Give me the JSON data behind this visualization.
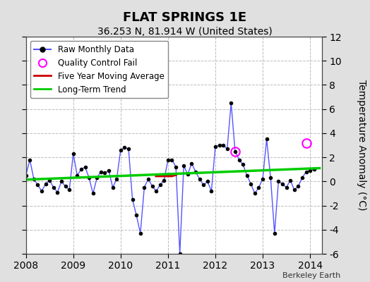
{
  "title": "FLAT SPRINGS 1E",
  "subtitle": "36.253 N, 81.914 W (United States)",
  "credit": "Berkeley Earth",
  "ylabel": "Temperature Anomaly (°C)",
  "xlim": [
    2008.0,
    2014.25
  ],
  "ylim": [
    -6,
    12
  ],
  "yticks": [
    -6,
    -4,
    -2,
    0,
    2,
    4,
    6,
    8,
    10,
    12
  ],
  "xticks": [
    2008,
    2009,
    2010,
    2011,
    2012,
    2013,
    2014
  ],
  "background_color": "#e0e0e0",
  "plot_bg_color": "#ffffff",
  "raw_color": "#5555ff",
  "raw_marker_color": "#000000",
  "qc_fail_color": "#ff00ff",
  "moving_avg_color": "#cc0000",
  "trend_color": "#00cc00",
  "raw_monthly": [
    [
      2008.0,
      0.5
    ],
    [
      2008.083,
      1.8
    ],
    [
      2008.167,
      0.2
    ],
    [
      2008.25,
      -0.3
    ],
    [
      2008.333,
      -0.8
    ],
    [
      2008.417,
      -0.2
    ],
    [
      2008.5,
      0.1
    ],
    [
      2008.583,
      -0.5
    ],
    [
      2008.667,
      -0.9
    ],
    [
      2008.75,
      0.0
    ],
    [
      2008.833,
      -0.4
    ],
    [
      2008.917,
      -0.7
    ],
    [
      2009.0,
      2.3
    ],
    [
      2009.083,
      0.5
    ],
    [
      2009.167,
      1.0
    ],
    [
      2009.25,
      1.2
    ],
    [
      2009.333,
      0.3
    ],
    [
      2009.417,
      -1.0
    ],
    [
      2009.5,
      0.3
    ],
    [
      2009.583,
      0.8
    ],
    [
      2009.667,
      0.7
    ],
    [
      2009.75,
      0.9
    ],
    [
      2009.833,
      -0.5
    ],
    [
      2009.917,
      0.2
    ],
    [
      2010.0,
      2.6
    ],
    [
      2010.083,
      2.8
    ],
    [
      2010.167,
      2.7
    ],
    [
      2010.25,
      -1.5
    ],
    [
      2010.333,
      -2.8
    ],
    [
      2010.417,
      -4.3
    ],
    [
      2010.5,
      -0.5
    ],
    [
      2010.583,
      0.2
    ],
    [
      2010.667,
      -0.4
    ],
    [
      2010.75,
      -0.8
    ],
    [
      2010.833,
      -0.3
    ],
    [
      2010.917,
      0.1
    ],
    [
      2011.0,
      1.8
    ],
    [
      2011.083,
      1.8
    ],
    [
      2011.167,
      1.2
    ],
    [
      2011.25,
      -6.0
    ],
    [
      2011.333,
      1.3
    ],
    [
      2011.417,
      0.6
    ],
    [
      2011.5,
      1.5
    ],
    [
      2011.583,
      0.8
    ],
    [
      2011.667,
      0.2
    ],
    [
      2011.75,
      -0.3
    ],
    [
      2011.833,
      0.0
    ],
    [
      2011.917,
      -0.8
    ],
    [
      2012.0,
      2.9
    ],
    [
      2012.083,
      3.0
    ],
    [
      2012.167,
      3.0
    ],
    [
      2012.25,
      2.7
    ],
    [
      2012.333,
      6.5
    ],
    [
      2012.417,
      2.5
    ],
    [
      2012.5,
      1.8
    ],
    [
      2012.583,
      1.4
    ],
    [
      2012.667,
      0.5
    ],
    [
      2012.75,
      -0.2
    ],
    [
      2012.833,
      -1.0
    ],
    [
      2012.917,
      -0.5
    ],
    [
      2013.0,
      0.2
    ],
    [
      2013.083,
      3.5
    ],
    [
      2013.167,
      0.3
    ],
    [
      2013.25,
      -4.3
    ],
    [
      2013.333,
      0.0
    ],
    [
      2013.417,
      -0.2
    ],
    [
      2013.5,
      -0.5
    ],
    [
      2013.583,
      0.1
    ],
    [
      2013.667,
      -0.7
    ],
    [
      2013.75,
      -0.4
    ],
    [
      2013.833,
      0.3
    ],
    [
      2013.917,
      0.8
    ],
    [
      2014.0,
      0.9
    ],
    [
      2014.083,
      1.0
    ]
  ],
  "qc_fail_points": [
    [
      2012.417,
      2.5
    ],
    [
      2013.917,
      3.2
    ]
  ],
  "moving_avg": [
    [
      2010.75,
      0.45
    ],
    [
      2010.833,
      0.45
    ],
    [
      2010.917,
      0.45
    ],
    [
      2011.0,
      0.45
    ],
    [
      2011.083,
      0.45
    ],
    [
      2011.167,
      0.55
    ]
  ],
  "trend_x": [
    2008.0,
    2014.2
  ],
  "trend_y": [
    0.15,
    1.1
  ]
}
